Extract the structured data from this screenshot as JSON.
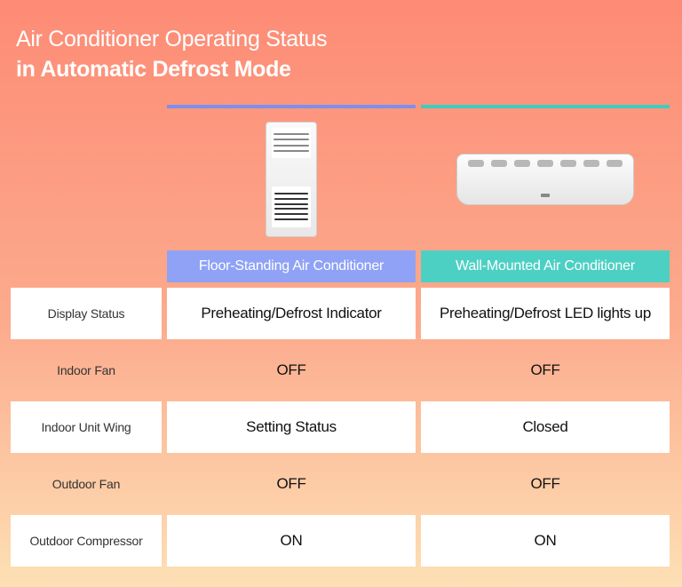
{
  "title": {
    "line1": "Air Conditioner Operating Status",
    "line2": "in Automatic Defrost Mode",
    "color": "#ffffff"
  },
  "background": {
    "gradient_start": "#fd8b75",
    "gradient_mid": "#fcab8d",
    "gradient_end": "#fde0b5"
  },
  "columns": [
    {
      "id": "floor",
      "label": "Floor-Standing Air Conditioner",
      "bar_color": "#7a90f0",
      "header_bg": "#8fa2f5"
    },
    {
      "id": "wall",
      "label": "Wall-Mounted Air Conditioner",
      "bar_color": "#3dccc0",
      "header_bg": "#4dd0c4"
    }
  ],
  "rows": [
    {
      "label": "Display Status",
      "floor": "Preheating/Defrost Indicator",
      "wall": "Preheating/Defrost LED lights up",
      "alt": false
    },
    {
      "label": "Indoor Fan",
      "floor": "OFF",
      "wall": "OFF",
      "alt": true
    },
    {
      "label": "Indoor Unit Wing",
      "floor": "Setting Status",
      "wall": "Closed",
      "alt": false
    },
    {
      "label": "Outdoor Fan",
      "floor": "OFF",
      "wall": "OFF",
      "alt": true
    },
    {
      "label": "Outdoor Compressor",
      "floor": "ON",
      "wall": "ON",
      "alt": false
    }
  ],
  "cell_bg_alt": "rgba(255,255,255,0)",
  "cell_bg": "#ffffff"
}
